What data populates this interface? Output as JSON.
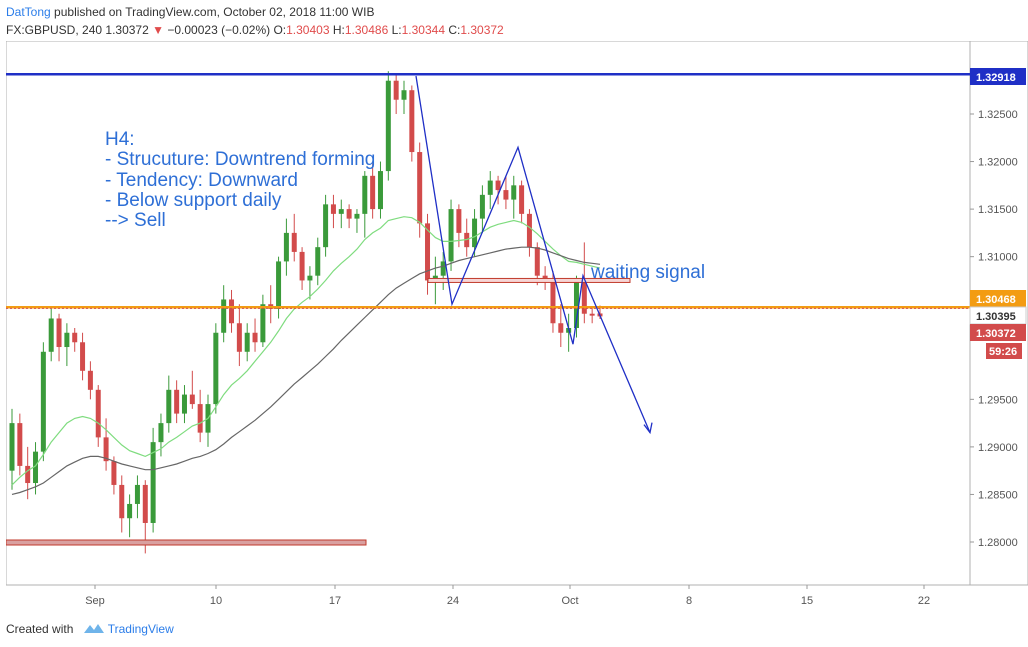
{
  "header": {
    "author": "DatTong",
    "published": "published on TradingView.com, October 02, 2018 11:00 WIB"
  },
  "ohlc": {
    "symbol": "FX:GBPUSD, 240",
    "last": "1.30372",
    "arrow": "▼",
    "change": "−0.00023 (−0.02%)",
    "o_label": "O:",
    "o": "1.30403",
    "h_label": "H:",
    "h": "1.30486",
    "l_label": "L:",
    "l": "1.30344",
    "c_label": "C:",
    "c": "1.30372"
  },
  "annotation": {
    "lines": [
      "H4:",
      "- Strucuture: Downtrend forming",
      "- Tendency: Downward",
      "- Below support daily",
      "--> Sell"
    ],
    "waiting": "waiting signal"
  },
  "price_labels": {
    "resistance": "1.32918",
    "support": "1.30468",
    "crosshair": "1.30395",
    "last": "1.30372",
    "countdown": "59:26"
  },
  "footer": {
    "created_with": "Created with",
    "brand": "TradingView"
  },
  "colors": {
    "bull": "#3a9a3a",
    "bear": "#d24b4b",
    "ma_fast": "#7fdc7f",
    "ma_slow": "#666666",
    "resistance": "#1f2fc6",
    "support": "#f39c12",
    "trend": "#1f2fc6",
    "zone": "#c0392b"
  },
  "chart_data": {
    "type": "candlestick",
    "symbol": "FX:GBPUSD",
    "interval": "240",
    "x_ticks": [
      "Sep",
      "10",
      "17",
      "24",
      "Oct",
      "8",
      "15",
      "22"
    ],
    "y_ticks": [
      "1.32500",
      "1.32000",
      "1.31500",
      "1.31000",
      "1.29500",
      "1.29000",
      "1.28500",
      "1.28000"
    ],
    "ylim": [
      1.2765,
      1.3315
    ],
    "levels": {
      "resistance": 1.32918,
      "support": 1.30468,
      "last": 1.30372,
      "support_zone_low": 1.28,
      "retest_zone": 1.3075
    },
    "candles": [
      {
        "o": 1.2875,
        "h": 1.294,
        "l": 1.2855,
        "c": 1.2925
      },
      {
        "o": 1.2925,
        "h": 1.2935,
        "l": 1.287,
        "c": 1.288
      },
      {
        "o": 1.288,
        "h": 1.29,
        "l": 1.2845,
        "c": 1.2862
      },
      {
        "o": 1.2862,
        "h": 1.2905,
        "l": 1.285,
        "c": 1.2895
      },
      {
        "o": 1.2895,
        "h": 1.301,
        "l": 1.2885,
        "c": 1.3
      },
      {
        "o": 1.3,
        "h": 1.3045,
        "l": 1.299,
        "c": 1.3035
      },
      {
        "o": 1.3035,
        "h": 1.304,
        "l": 1.299,
        "c": 1.3005
      },
      {
        "o": 1.3005,
        "h": 1.303,
        "l": 1.2985,
        "c": 1.302
      },
      {
        "o": 1.302,
        "h": 1.3025,
        "l": 1.3,
        "c": 1.301
      },
      {
        "o": 1.301,
        "h": 1.302,
        "l": 1.297,
        "c": 1.298
      },
      {
        "o": 1.298,
        "h": 1.299,
        "l": 1.295,
        "c": 1.296
      },
      {
        "o": 1.296,
        "h": 1.2965,
        "l": 1.29,
        "c": 1.291
      },
      {
        "o": 1.291,
        "h": 1.293,
        "l": 1.2875,
        "c": 1.2885
      },
      {
        "o": 1.2885,
        "h": 1.289,
        "l": 1.285,
        "c": 1.286
      },
      {
        "o": 1.286,
        "h": 1.287,
        "l": 1.281,
        "c": 1.2825
      },
      {
        "o": 1.2825,
        "h": 1.285,
        "l": 1.2805,
        "c": 1.284
      },
      {
        "o": 1.284,
        "h": 1.287,
        "l": 1.2825,
        "c": 1.286
      },
      {
        "o": 1.286,
        "h": 1.2865,
        "l": 1.2788,
        "c": 1.282
      },
      {
        "o": 1.282,
        "h": 1.292,
        "l": 1.281,
        "c": 1.2905
      },
      {
        "o": 1.2905,
        "h": 1.2935,
        "l": 1.289,
        "c": 1.2925
      },
      {
        "o": 1.2925,
        "h": 1.2975,
        "l": 1.2915,
        "c": 1.296
      },
      {
        "o": 1.296,
        "h": 1.297,
        "l": 1.2925,
        "c": 1.2935
      },
      {
        "o": 1.2935,
        "h": 1.2965,
        "l": 1.2925,
        "c": 1.2955
      },
      {
        "o": 1.2955,
        "h": 1.298,
        "l": 1.294,
        "c": 1.2945
      },
      {
        "o": 1.2945,
        "h": 1.296,
        "l": 1.2905,
        "c": 1.2915
      },
      {
        "o": 1.2915,
        "h": 1.2955,
        "l": 1.29,
        "c": 1.2945
      },
      {
        "o": 1.2945,
        "h": 1.303,
        "l": 1.2935,
        "c": 1.302
      },
      {
        "o": 1.302,
        "h": 1.307,
        "l": 1.301,
        "c": 1.3055
      },
      {
        "o": 1.3055,
        "h": 1.3065,
        "l": 1.302,
        "c": 1.303
      },
      {
        "o": 1.303,
        "h": 1.305,
        "l": 1.2985,
        "c": 1.3
      },
      {
        "o": 1.3,
        "h": 1.303,
        "l": 1.299,
        "c": 1.302
      },
      {
        "o": 1.302,
        "h": 1.3035,
        "l": 1.3,
        "c": 1.301
      },
      {
        "o": 1.301,
        "h": 1.306,
        "l": 1.3005,
        "c": 1.305
      },
      {
        "o": 1.305,
        "h": 1.307,
        "l": 1.303,
        "c": 1.3045
      },
      {
        "o": 1.3045,
        "h": 1.31,
        "l": 1.3035,
        "c": 1.3095
      },
      {
        "o": 1.3095,
        "h": 1.314,
        "l": 1.308,
        "c": 1.3125
      },
      {
        "o": 1.3125,
        "h": 1.3145,
        "l": 1.3095,
        "c": 1.3105
      },
      {
        "o": 1.3105,
        "h": 1.311,
        "l": 1.3065,
        "c": 1.3075
      },
      {
        "o": 1.3075,
        "h": 1.309,
        "l": 1.3055,
        "c": 1.308
      },
      {
        "o": 1.308,
        "h": 1.312,
        "l": 1.307,
        "c": 1.311
      },
      {
        "o": 1.311,
        "h": 1.3165,
        "l": 1.31,
        "c": 1.3155
      },
      {
        "o": 1.3155,
        "h": 1.3165,
        "l": 1.313,
        "c": 1.3145
      },
      {
        "o": 1.3145,
        "h": 1.316,
        "l": 1.313,
        "c": 1.315
      },
      {
        "o": 1.315,
        "h": 1.3155,
        "l": 1.313,
        "c": 1.314
      },
      {
        "o": 1.314,
        "h": 1.315,
        "l": 1.3125,
        "c": 1.3145
      },
      {
        "o": 1.3145,
        "h": 1.319,
        "l": 1.312,
        "c": 1.3185
      },
      {
        "o": 1.3185,
        "h": 1.32,
        "l": 1.314,
        "c": 1.315
      },
      {
        "o": 1.315,
        "h": 1.32,
        "l": 1.314,
        "c": 1.319
      },
      {
        "o": 1.319,
        "h": 1.3295,
        "l": 1.318,
        "c": 1.3285
      },
      {
        "o": 1.3285,
        "h": 1.3292,
        "l": 1.325,
        "c": 1.3265
      },
      {
        "o": 1.3265,
        "h": 1.3285,
        "l": 1.325,
        "c": 1.3275
      },
      {
        "o": 1.3275,
        "h": 1.328,
        "l": 1.32,
        "c": 1.321
      },
      {
        "o": 1.321,
        "h": 1.322,
        "l": 1.312,
        "c": 1.3135
      },
      {
        "o": 1.3135,
        "h": 1.3145,
        "l": 1.306,
        "c": 1.3075
      },
      {
        "o": 1.3075,
        "h": 1.31,
        "l": 1.305,
        "c": 1.308
      },
      {
        "o": 1.308,
        "h": 1.3105,
        "l": 1.3065,
        "c": 1.3095
      },
      {
        "o": 1.3095,
        "h": 1.316,
        "l": 1.3085,
        "c": 1.315
      },
      {
        "o": 1.315,
        "h": 1.3155,
        "l": 1.311,
        "c": 1.3125
      },
      {
        "o": 1.3125,
        "h": 1.314,
        "l": 1.31,
        "c": 1.311
      },
      {
        "o": 1.311,
        "h": 1.315,
        "l": 1.31,
        "c": 1.314
      },
      {
        "o": 1.314,
        "h": 1.3175,
        "l": 1.3125,
        "c": 1.3165
      },
      {
        "o": 1.3165,
        "h": 1.319,
        "l": 1.315,
        "c": 1.318
      },
      {
        "o": 1.318,
        "h": 1.3185,
        "l": 1.3155,
        "c": 1.317
      },
      {
        "o": 1.317,
        "h": 1.3185,
        "l": 1.315,
        "c": 1.316
      },
      {
        "o": 1.316,
        "h": 1.3185,
        "l": 1.314,
        "c": 1.3175
      },
      {
        "o": 1.3175,
        "h": 1.318,
        "l": 1.3135,
        "c": 1.3145
      },
      {
        "o": 1.3145,
        "h": 1.315,
        "l": 1.31,
        "c": 1.311
      },
      {
        "o": 1.311,
        "h": 1.3115,
        "l": 1.307,
        "c": 1.308
      },
      {
        "o": 1.308,
        "h": 1.309,
        "l": 1.3065,
        "c": 1.3075
      },
      {
        "o": 1.3075,
        "h": 1.3085,
        "l": 1.302,
        "c": 1.303
      },
      {
        "o": 1.303,
        "h": 1.305,
        "l": 1.3005,
        "c": 1.302
      },
      {
        "o": 1.302,
        "h": 1.304,
        "l": 1.3,
        "c": 1.3025
      },
      {
        "o": 1.3025,
        "h": 1.308,
        "l": 1.3015,
        "c": 1.3075
      },
      {
        "o": 1.3075,
        "h": 1.3115,
        "l": 1.303,
        "c": 1.304
      },
      {
        "o": 1.304,
        "h": 1.3048,
        "l": 1.303,
        "c": 1.3038
      },
      {
        "o": 1.30403,
        "h": 1.30486,
        "l": 1.30344,
        "c": 1.30372
      }
    ],
    "moving_averages": [
      {
        "type": "fast",
        "values": [
          1.286,
          1.2868,
          1.2875,
          1.288,
          1.2892,
          1.2905,
          1.2915,
          1.2925,
          1.293,
          1.2932,
          1.293,
          1.2925,
          1.2918,
          1.291,
          1.2902,
          1.2896,
          1.2893,
          1.289,
          1.2894,
          1.2898,
          1.2905,
          1.291,
          1.2916,
          1.2922,
          1.2925,
          1.293,
          1.2942,
          1.2955,
          1.2965,
          1.2972,
          1.298,
          1.299,
          1.3,
          1.301,
          1.3022,
          1.3035,
          1.3045,
          1.3052,
          1.3058,
          1.3066,
          1.3075,
          1.3085,
          1.3093,
          1.31,
          1.3108,
          1.3118,
          1.3125,
          1.313,
          1.3138,
          1.314,
          1.3142,
          1.3141,
          1.3136,
          1.3128,
          1.312,
          1.3116,
          1.3116,
          1.3117,
          1.3118,
          1.3121,
          1.3126,
          1.3131,
          1.3134,
          1.3136,
          1.3138,
          1.3136,
          1.3131,
          1.3124,
          1.3116,
          1.3108,
          1.3101,
          1.3095,
          1.3094,
          1.3092,
          1.309,
          1.3088
        ]
      },
      {
        "type": "slow",
        "values": [
          1.285,
          1.2852,
          1.2855,
          1.2858,
          1.2862,
          1.2868,
          1.2874,
          1.288,
          1.2884,
          1.2888,
          1.289,
          1.289,
          1.2888,
          1.2885,
          1.2882,
          1.288,
          1.2878,
          1.2876,
          1.2876,
          1.2878,
          1.288,
          1.2882,
          1.2885,
          1.2888,
          1.289,
          1.2893,
          1.2897,
          1.2903,
          1.291,
          1.2916,
          1.2922,
          1.2928,
          1.2935,
          1.2942,
          1.295,
          1.2958,
          1.2966,
          1.2973,
          1.298,
          1.2987,
          1.2995,
          1.3003,
          1.3012,
          1.302,
          1.3028,
          1.3036,
          1.3044,
          1.3052,
          1.306,
          1.3067,
          1.3072,
          1.3077,
          1.3082,
          1.3085,
          1.3088,
          1.309,
          1.3093,
          1.3096,
          1.3098,
          1.31,
          1.3102,
          1.3104,
          1.3106,
          1.3108,
          1.3109,
          1.311,
          1.311,
          1.3109,
          1.3107,
          1.3104,
          1.3101,
          1.3098,
          1.3096,
          1.3094,
          1.3093,
          1.3092
        ]
      }
    ],
    "trend_path": [
      1.329,
      1.305,
      1.3215,
      1.3008,
      1.308,
      1.2915
    ]
  }
}
